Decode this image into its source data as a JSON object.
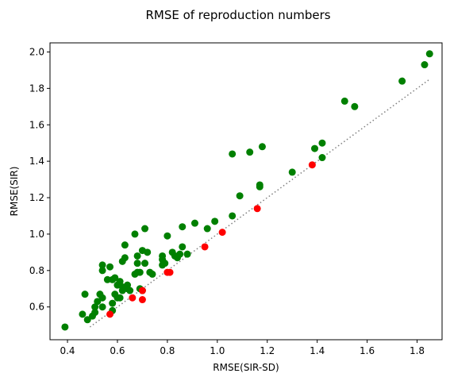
{
  "chart_data": {
    "type": "scatter",
    "title": "RMSE of reproduction numbers",
    "xlabel": "RMSE(SIR-SD)",
    "ylabel": "RMSE(SIR)",
    "xlim": [
      0.33,
      1.9
    ],
    "ylim": [
      0.42,
      2.05
    ],
    "xticks": [
      "0.4",
      "0.6",
      "0.8",
      "1.0",
      "1.2",
      "1.4",
      "1.6",
      "1.8"
    ],
    "xtick_values": [
      0.4,
      0.6,
      0.8,
      1.0,
      1.2,
      1.4,
      1.6,
      1.8
    ],
    "yticks": [
      "0.6",
      "0.8",
      "1.0",
      "1.2",
      "1.4",
      "1.6",
      "1.8",
      "2.0"
    ],
    "ytick_values": [
      0.6,
      0.8,
      1.0,
      1.2,
      1.4,
      1.6,
      1.8,
      2.0
    ],
    "grid": false,
    "reference_line": {
      "style": "dotted",
      "color": "#808080",
      "x": [
        0.49,
        1.85
      ],
      "y": [
        0.49,
        1.85
      ]
    },
    "series": [
      {
        "color": "#008000",
        "points": [
          [
            0.39,
            0.49
          ],
          [
            0.46,
            0.56
          ],
          [
            0.47,
            0.67
          ],
          [
            0.48,
            0.53
          ],
          [
            0.5,
            0.55
          ],
          [
            0.51,
            0.57
          ],
          [
            0.51,
            0.6
          ],
          [
            0.52,
            0.63
          ],
          [
            0.53,
            0.67
          ],
          [
            0.54,
            0.6
          ],
          [
            0.54,
            0.65
          ],
          [
            0.54,
            0.8
          ],
          [
            0.54,
            0.83
          ],
          [
            0.56,
            0.75
          ],
          [
            0.57,
            0.82
          ],
          [
            0.58,
            0.58
          ],
          [
            0.58,
            0.75
          ],
          [
            0.58,
            0.62
          ],
          [
            0.59,
            0.76
          ],
          [
            0.59,
            0.67
          ],
          [
            0.6,
            0.65
          ],
          [
            0.6,
            0.72
          ],
          [
            0.61,
            0.74
          ],
          [
            0.61,
            0.65
          ],
          [
            0.62,
            0.69
          ],
          [
            0.62,
            0.85
          ],
          [
            0.62,
            0.71
          ],
          [
            0.63,
            0.94
          ],
          [
            0.63,
            0.87
          ],
          [
            0.64,
            0.72
          ],
          [
            0.64,
            0.7
          ],
          [
            0.65,
            0.69
          ],
          [
            0.67,
            0.78
          ],
          [
            0.67,
            1.0
          ],
          [
            0.68,
            0.79
          ],
          [
            0.68,
            0.84
          ],
          [
            0.68,
            0.88
          ],
          [
            0.69,
            0.7
          ],
          [
            0.69,
            0.79
          ],
          [
            0.7,
            0.91
          ],
          [
            0.7,
            0.69
          ],
          [
            0.71,
            1.03
          ],
          [
            0.71,
            0.84
          ],
          [
            0.72,
            0.9
          ],
          [
            0.73,
            0.79
          ],
          [
            0.74,
            0.78
          ],
          [
            0.78,
            0.83
          ],
          [
            0.78,
            0.86
          ],
          [
            0.78,
            0.88
          ],
          [
            0.79,
            0.84
          ],
          [
            0.8,
            0.99
          ],
          [
            0.82,
            0.9
          ],
          [
            0.83,
            0.88
          ],
          [
            0.84,
            0.87
          ],
          [
            0.85,
            0.89
          ],
          [
            0.86,
            0.93
          ],
          [
            0.86,
            1.04
          ],
          [
            0.88,
            0.89
          ],
          [
            0.91,
            1.06
          ],
          [
            0.96,
            1.03
          ],
          [
            0.99,
            1.07
          ],
          [
            1.06,
            1.1
          ],
          [
            1.06,
            1.44
          ],
          [
            1.09,
            1.21
          ],
          [
            1.13,
            1.45
          ],
          [
            1.17,
            1.27
          ],
          [
            1.17,
            1.26
          ],
          [
            1.18,
            1.48
          ],
          [
            1.3,
            1.34
          ],
          [
            1.39,
            1.47
          ],
          [
            1.42,
            1.42
          ],
          [
            1.42,
            1.5
          ],
          [
            1.51,
            1.73
          ],
          [
            1.55,
            1.7
          ],
          [
            1.74,
            1.84
          ],
          [
            1.83,
            1.93
          ],
          [
            1.85,
            1.99
          ]
        ]
      },
      {
        "color": "#ff0000",
        "points": [
          [
            0.57,
            0.56
          ],
          [
            0.66,
            0.65
          ],
          [
            0.7,
            0.69
          ],
          [
            0.7,
            0.64
          ],
          [
            0.8,
            0.79
          ],
          [
            0.81,
            0.79
          ],
          [
            0.95,
            0.93
          ],
          [
            1.02,
            1.01
          ],
          [
            1.16,
            1.14
          ],
          [
            1.38,
            1.38
          ]
        ]
      }
    ]
  }
}
